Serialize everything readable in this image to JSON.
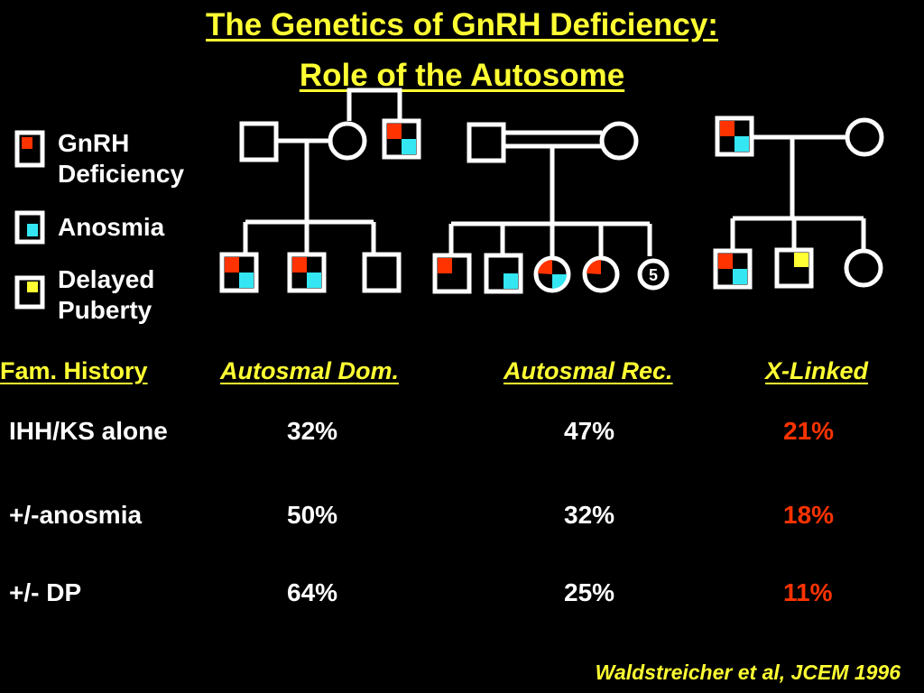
{
  "title": {
    "line1": "The Genetics of GnRH Deficiency:",
    "line2": "Role of the Autosome"
  },
  "legend": [
    {
      "label_line1": "GnRH",
      "label_line2": "Deficiency",
      "color": "#ff3300",
      "icon": "red-quadrant-square-icon"
    },
    {
      "label_line1": "Anosmia",
      "label_line2": "",
      "color": "#33e6f2",
      "icon": "cyan-quadrant-square-icon"
    },
    {
      "label_line1": "Delayed",
      "label_line2": "Puberty",
      "color": "#ffff33",
      "icon": "yellow-quadrant-square-icon"
    }
  ],
  "pedigree": {
    "sibship_count_label": "5"
  },
  "table": {
    "headers": [
      "Fam. History",
      "Autosmal Dom.",
      "Autosmal Rec.",
      "X-Linked"
    ],
    "rows": [
      {
        "label": "IHH/KS alone",
        "dom": "32%",
        "rec": "47%",
        "xl": "21%"
      },
      {
        "label": "+/-anosmia",
        "dom": "50%",
        "rec": "32%",
        "xl": "18%"
      },
      {
        "label": "+/- DP",
        "dom": "64%",
        "rec": "25%",
        "xl": "11%"
      }
    ]
  },
  "citation": "Waldstreicher et al, JCEM 1996",
  "colors": {
    "background": "#000000",
    "title": "#ffff33",
    "gnrh": "#ff3300",
    "anosmia": "#33e6f2",
    "delayed_puberty": "#ffff33",
    "xlinked_values": "#ff3300"
  }
}
